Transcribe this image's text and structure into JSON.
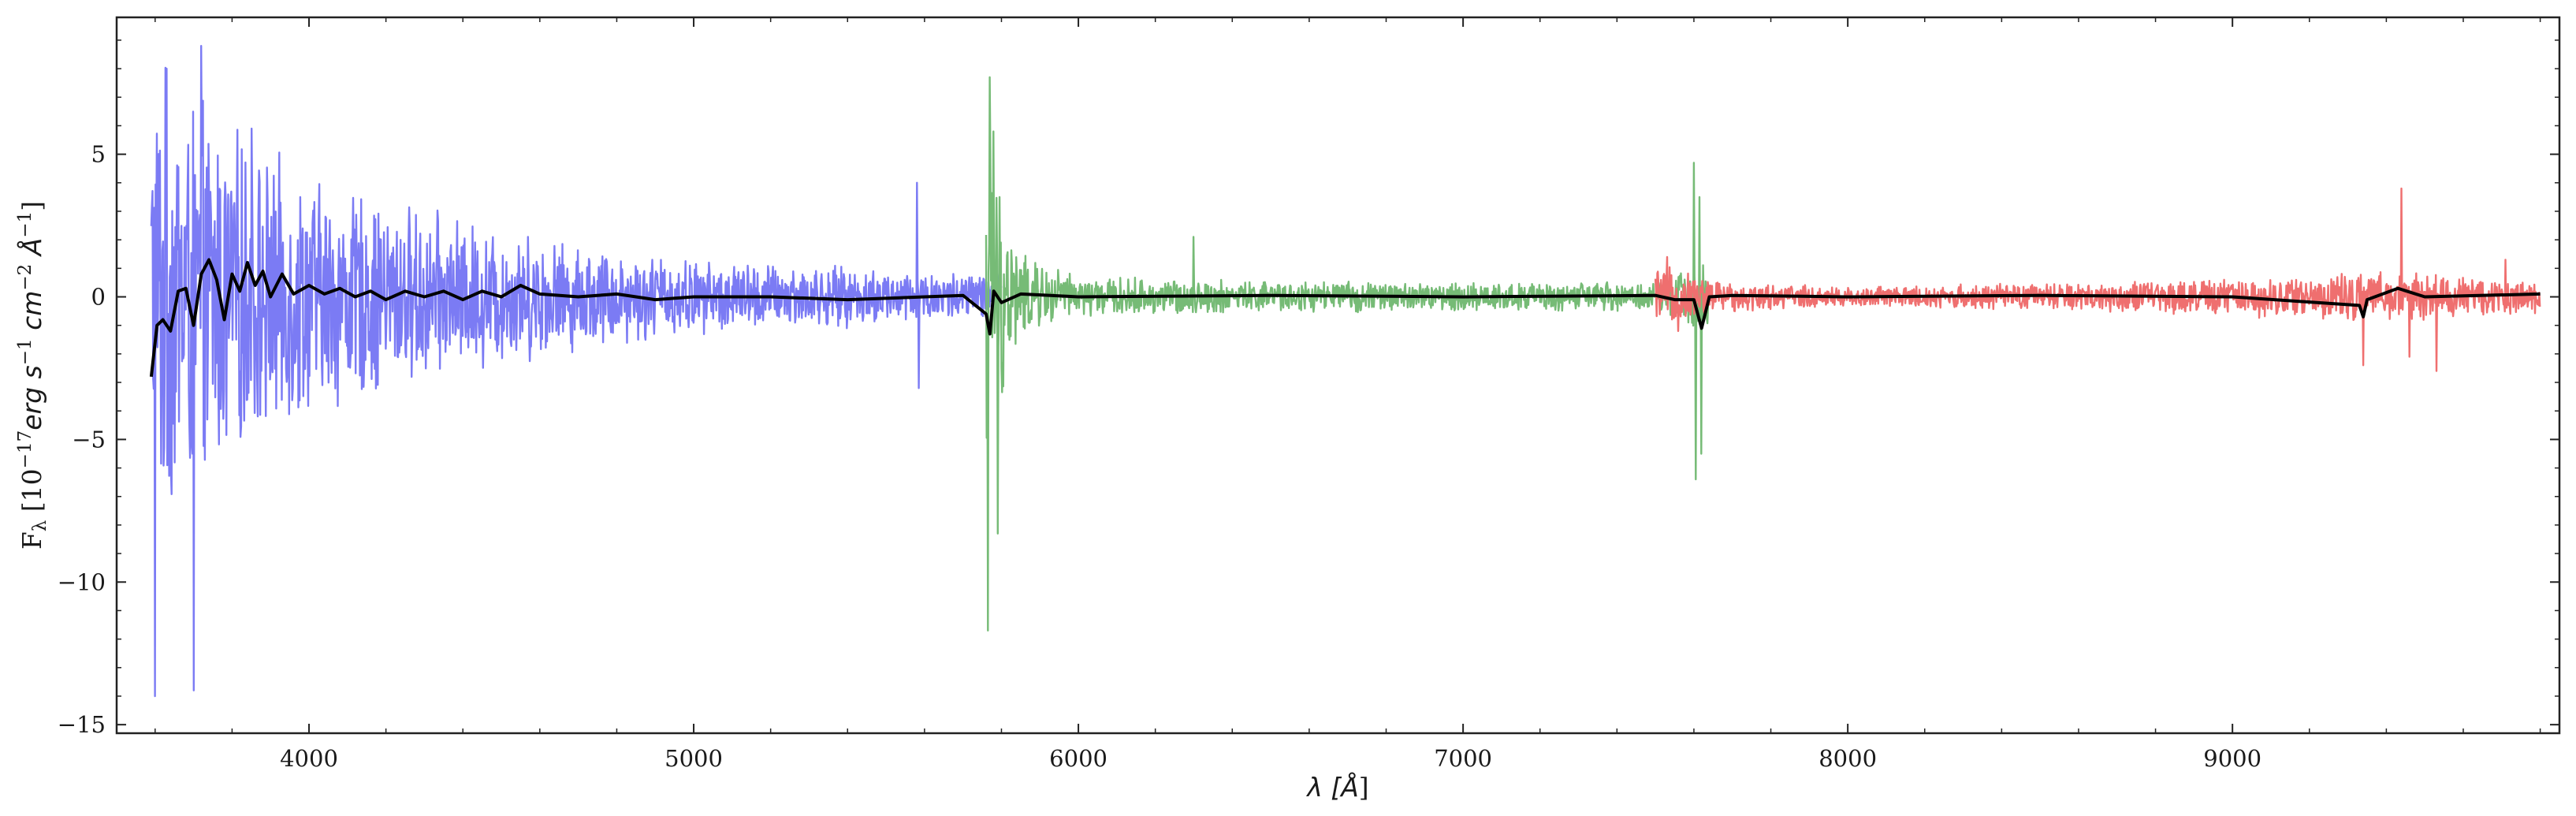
{
  "chart_data": {
    "type": "line",
    "title": "",
    "xlabel": {
      "prefix": "λ [",
      "unit": "Å",
      "suffix": "]"
    },
    "ylabel": {
      "prefix": "F",
      "subscript": "λ",
      "bracket_open": " [10",
      "exp": "−17",
      "erg": "erg s",
      "exp_s": "−1",
      "cm": " cm",
      "exp_cm": "−2",
      "ang": " Å",
      "exp_ang": "−1",
      "bracket_close": "]"
    },
    "xlim": [
      3500,
      9850
    ],
    "ylim": [
      -15.3,
      9.8
    ],
    "x_ticks": [
      4000,
      5000,
      6000,
      7000,
      8000,
      9000
    ],
    "x_tick_labels": [
      "4000",
      "5000",
      "6000",
      "7000",
      "8000",
      "9000"
    ],
    "y_ticks": [
      5,
      0,
      -5,
      -10,
      -15
    ],
    "y_tick_labels": [
      "5",
      "0",
      "−5",
      "−10",
      "−15"
    ],
    "x_minor_step": 200,
    "y_minor_step": 1,
    "grid": false,
    "legend": "none",
    "series": [
      {
        "color": "#7b7bf4",
        "x_range": [
          3590,
          5800
        ],
        "envelope": [
          [
            3590,
            9.0
          ],
          [
            3650,
            8.0
          ],
          [
            3750,
            6.8
          ],
          [
            3900,
            5.2
          ],
          [
            4100,
            4.0
          ],
          [
            4400,
            2.9
          ],
          [
            4700,
            2.0
          ],
          [
            5000,
            1.4
          ],
          [
            5300,
            1.2
          ],
          [
            5600,
            1.0
          ],
          [
            5800,
            0.9
          ]
        ],
        "spikes": [
          [
            3600,
            -14.0
          ],
          [
            3630,
            8.0
          ],
          [
            3700,
            -13.8
          ],
          [
            3720,
            8.8
          ],
          [
            3850,
            5.9
          ],
          [
            5580,
            4.0
          ],
          [
            5585,
            -3.2
          ]
        ]
      },
      {
        "color": "#76bb76",
        "x_range": [
          5760,
          7640
        ],
        "envelope": [
          [
            5760,
            7.8
          ],
          [
            5790,
            4.5
          ],
          [
            5850,
            1.6
          ],
          [
            6000,
            0.75
          ],
          [
            6500,
            0.6
          ],
          [
            7000,
            0.55
          ],
          [
            7500,
            0.55
          ],
          [
            7550,
            0.8
          ],
          [
            7640,
            1.5
          ]
        ],
        "spikes": [
          [
            5765,
            -11.7
          ],
          [
            5770,
            7.7
          ],
          [
            5780,
            5.8
          ],
          [
            5790,
            -8.3
          ],
          [
            6300,
            2.1
          ],
          [
            7600,
            4.7
          ],
          [
            7605,
            -6.4
          ],
          [
            7615,
            3.5
          ],
          [
            7620,
            -5.5
          ]
        ]
      },
      {
        "color": "#ef6f6f",
        "x_range": [
          7500,
          9800
        ],
        "envelope": [
          [
            7500,
            1.2
          ],
          [
            7700,
            0.55
          ],
          [
            8000,
            0.4
          ],
          [
            8500,
            0.5
          ],
          [
            9000,
            0.7
          ],
          [
            9300,
            0.9
          ],
          [
            9500,
            0.9
          ],
          [
            9800,
            0.6
          ]
        ],
        "spikes": [
          [
            7530,
            1.4
          ],
          [
            7560,
            -1.2
          ],
          [
            9340,
            -2.4
          ],
          [
            9440,
            3.8
          ],
          [
            9460,
            -2.1
          ],
          [
            9530,
            -2.6
          ],
          [
            9710,
            1.3
          ]
        ]
      }
    ],
    "smoothed_line": {
      "color": "#000000",
      "points": [
        [
          3590,
          -2.8
        ],
        [
          3605,
          -1.0
        ],
        [
          3620,
          -0.8
        ],
        [
          3640,
          -1.2
        ],
        [
          3660,
          0.2
        ],
        [
          3680,
          0.3
        ],
        [
          3700,
          -1.0
        ],
        [
          3720,
          0.8
        ],
        [
          3740,
          1.3
        ],
        [
          3760,
          0.6
        ],
        [
          3780,
          -0.8
        ],
        [
          3800,
          0.8
        ],
        [
          3820,
          0.2
        ],
        [
          3840,
          1.2
        ],
        [
          3860,
          0.4
        ],
        [
          3880,
          0.9
        ],
        [
          3900,
          0.0
        ],
        [
          3930,
          0.8
        ],
        [
          3960,
          0.1
        ],
        [
          4000,
          0.4
        ],
        [
          4040,
          0.1
        ],
        [
          4080,
          0.3
        ],
        [
          4120,
          0.0
        ],
        [
          4160,
          0.2
        ],
        [
          4200,
          -0.1
        ],
        [
          4250,
          0.2
        ],
        [
          4300,
          0.0
        ],
        [
          4350,
          0.2
        ],
        [
          4400,
          -0.1
        ],
        [
          4450,
          0.2
        ],
        [
          4500,
          0.0
        ],
        [
          4550,
          0.4
        ],
        [
          4600,
          0.1
        ],
        [
          4700,
          0.0
        ],
        [
          4800,
          0.1
        ],
        [
          4900,
          -0.1
        ],
        [
          5000,
          0.0
        ],
        [
          5200,
          0.0
        ],
        [
          5400,
          -0.1
        ],
        [
          5600,
          0.0
        ],
        [
          5700,
          0.05
        ],
        [
          5760,
          -0.6
        ],
        [
          5770,
          -1.3
        ],
        [
          5780,
          0.2
        ],
        [
          5800,
          -0.2
        ],
        [
          5850,
          0.1
        ],
        [
          6000,
          0.0
        ],
        [
          6500,
          0.05
        ],
        [
          7000,
          0.0
        ],
        [
          7500,
          0.05
        ],
        [
          7550,
          -0.1
        ],
        [
          7600,
          -0.1
        ],
        [
          7620,
          -1.1
        ],
        [
          7640,
          0.0
        ],
        [
          7700,
          0.05
        ],
        [
          8000,
          0.0
        ],
        [
          8500,
          0.05
        ],
        [
          9000,
          0.0
        ],
        [
          9330,
          -0.3
        ],
        [
          9340,
          -0.7
        ],
        [
          9350,
          -0.1
        ],
        [
          9430,
          0.3
        ],
        [
          9500,
          0.0
        ],
        [
          9800,
          0.1
        ]
      ]
    }
  }
}
